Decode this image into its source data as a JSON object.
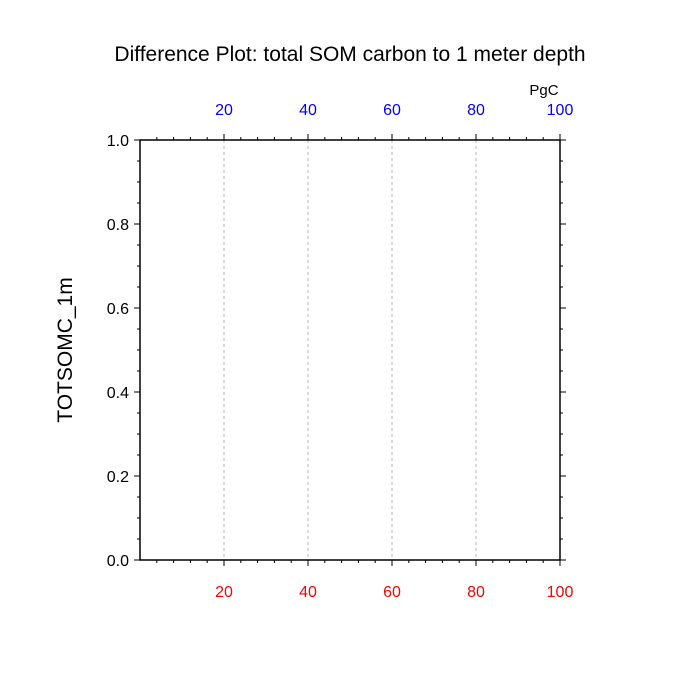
{
  "chart_data": {
    "type": "line",
    "title": "Difference Plot: total SOM carbon to 1 meter depth",
    "ylabel": "TOTSOMC_1m",
    "top_axis_unit": "PgC",
    "xlim": [
      0,
      100
    ],
    "ylim": [
      0.0,
      1.0
    ],
    "x_ticks_bottom": [
      20,
      40,
      60,
      80,
      100
    ],
    "x_tick_labels_bottom": [
      "20",
      "40",
      "60",
      "80",
      "100"
    ],
    "x_ticks_top": [
      20,
      40,
      60,
      80,
      100
    ],
    "x_tick_labels_top": [
      "20",
      "40",
      "60",
      "80",
      "100"
    ],
    "y_ticks": [
      0.0,
      0.2,
      0.4,
      0.6,
      0.8,
      1.0
    ],
    "y_tick_labels": [
      "0.0",
      "0.2",
      "0.4",
      "0.6",
      "0.8",
      "1.0"
    ],
    "vertical_gridlines": [
      20,
      40,
      60,
      80
    ],
    "grid": "vertical dashed at major x ticks",
    "series": [],
    "colors": {
      "bottom_tick_labels": "#ff0000",
      "top_tick_labels": "#0000ff",
      "y_tick_labels": "#000000",
      "gridlines": "#b4b4b4",
      "axes": "#000000"
    }
  }
}
